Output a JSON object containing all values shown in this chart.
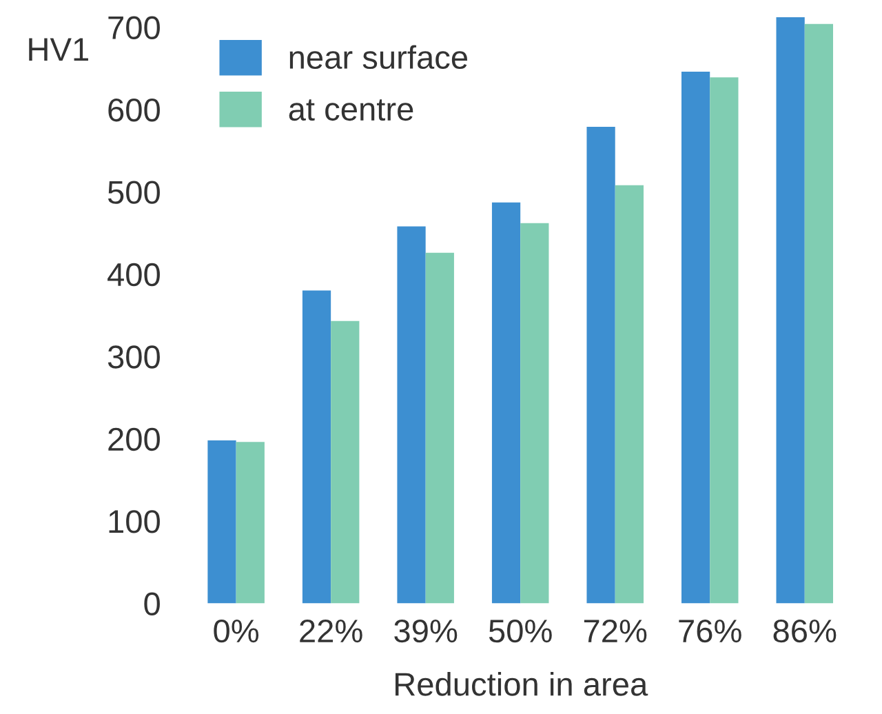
{
  "chart_data": {
    "type": "bar",
    "ylabel": "HV1",
    "xlabel": "Reduction in area",
    "categories": [
      "0%",
      "22%",
      "39%",
      "50%",
      "72%",
      "76%",
      "86%"
    ],
    "series": [
      {
        "name": "near surface",
        "color": "#3d8fd1",
        "values": [
          198,
          380,
          458,
          487,
          579,
          646,
          712
        ]
      },
      {
        "name": "at centre",
        "color": "#80cdb2",
        "values": [
          196,
          343,
          426,
          462,
          508,
          639,
          704
        ]
      }
    ],
    "ylim": [
      0,
      720
    ],
    "yticks": [
      0,
      100,
      200,
      300,
      400,
      500,
      600,
      700
    ],
    "grid": false,
    "legend": "top left"
  }
}
